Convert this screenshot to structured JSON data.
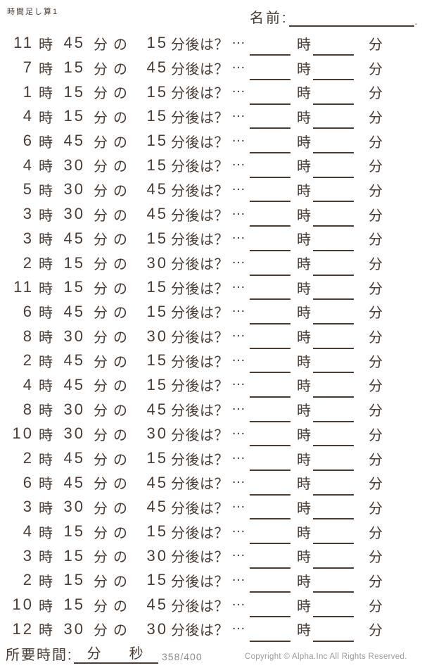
{
  "header": {
    "title": "時間足し算1",
    "name_label": "名前:",
    "name_period": "."
  },
  "labels": {
    "hour_unit": "時",
    "minute_unit": "分の",
    "after_suffix": "分後は？",
    "ellipsis": "…",
    "answer_hour_unit": "時",
    "answer_minute_unit": "分"
  },
  "problems": [
    {
      "hour": 11,
      "minute": 45,
      "delta": 15
    },
    {
      "hour": 7,
      "minute": 15,
      "delta": 45
    },
    {
      "hour": 1,
      "minute": 15,
      "delta": 15
    },
    {
      "hour": 4,
      "minute": 15,
      "delta": 15
    },
    {
      "hour": 6,
      "minute": 45,
      "delta": 15
    },
    {
      "hour": 4,
      "minute": 30,
      "delta": 15
    },
    {
      "hour": 5,
      "minute": 30,
      "delta": 45
    },
    {
      "hour": 3,
      "minute": 30,
      "delta": 45
    },
    {
      "hour": 3,
      "minute": 45,
      "delta": 15
    },
    {
      "hour": 2,
      "minute": 15,
      "delta": 30
    },
    {
      "hour": 11,
      "minute": 15,
      "delta": 15
    },
    {
      "hour": 6,
      "minute": 45,
      "delta": 15
    },
    {
      "hour": 8,
      "minute": 30,
      "delta": 30
    },
    {
      "hour": 2,
      "minute": 45,
      "delta": 15
    },
    {
      "hour": 4,
      "minute": 45,
      "delta": 15
    },
    {
      "hour": 8,
      "minute": 30,
      "delta": 45
    },
    {
      "hour": 10,
      "minute": 30,
      "delta": 30
    },
    {
      "hour": 2,
      "minute": 45,
      "delta": 15
    },
    {
      "hour": 6,
      "minute": 45,
      "delta": 45
    },
    {
      "hour": 3,
      "minute": 30,
      "delta": 45
    },
    {
      "hour": 4,
      "minute": 15,
      "delta": 15
    },
    {
      "hour": 3,
      "minute": 15,
      "delta": 30
    },
    {
      "hour": 2,
      "minute": 15,
      "delta": 15
    },
    {
      "hour": 10,
      "minute": 15,
      "delta": 45
    },
    {
      "hour": 12,
      "minute": 30,
      "delta": 30
    }
  ],
  "footer": {
    "elapsed_label": "所要時間:",
    "elapsed_minute_unit": "分",
    "elapsed_second_unit": "秒",
    "page_counter": "358/400",
    "copyright": "Copyright ©  Alpha.Inc All Rights Reserved."
  },
  "colors": {
    "ink": "#483c35",
    "muted": "#9c9c9c",
    "background": "#ffffff"
  }
}
